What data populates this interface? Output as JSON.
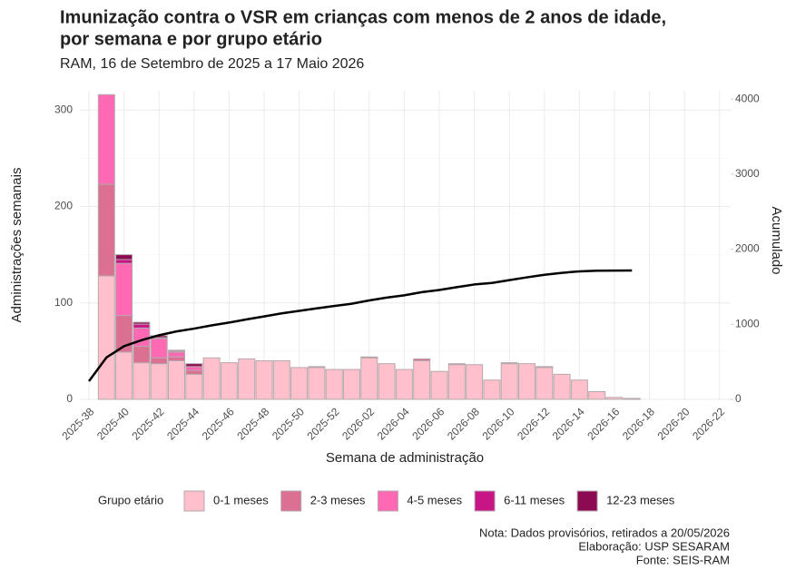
{
  "chart_data": {
    "type": "bar",
    "title": [
      "Imunização contra o VSR em crianças com menos de 2 anos de idade,",
      "por semana e por grupo etário"
    ],
    "subtitle": "RAM, 16 de Setembro de 2025 a 17 Maio 2026",
    "x_label": "Semana de administração",
    "y_label": "Administrações semanais",
    "y2_label": "Acumulado",
    "legend_title": "Grupo etário",
    "notes": [
      "Nota: Dados provisórios, retirados a 20/05/2026",
      "Elaboração: USP SESARAM",
      "Fonte: SEIS-RAM"
    ],
    "stacked": true,
    "grid": true,
    "legend": "bottom",
    "categories": [
      "2025-38",
      null,
      "2025-40",
      null,
      "2025-42",
      null,
      "2025-44",
      null,
      "2025-46",
      null,
      "2025-48",
      null,
      "2025-50",
      null,
      "2025-52",
      null,
      "2026-02",
      null,
      "2026-04",
      null,
      "2026-06",
      null,
      "2026-08",
      null,
      "2026-10",
      null,
      "2026-12",
      null,
      "2026-14",
      null,
      "2026-16",
      null,
      "2026-18",
      null,
      "2026-20",
      null,
      "2026-22"
    ],
    "ylim": [
      0,
      320
    ],
    "yticks": [
      0,
      100,
      200,
      300
    ],
    "y2lim": [
      0,
      4110
    ],
    "y2ticks": [
      0,
      1000,
      2000,
      3000,
      4000
    ],
    "series": [
      {
        "name": "0-1 meses",
        "color": "#ffc0cb",
        "values": [
          null,
          128,
          49,
          38,
          37,
          40,
          26,
          43,
          38,
          42,
          40,
          40,
          33,
          33,
          31,
          31,
          43,
          37,
          31,
          40,
          29,
          36,
          36,
          20,
          37,
          37,
          33,
          26,
          20,
          8,
          2,
          1,
          null,
          null,
          null,
          null,
          null
        ]
      },
      {
        "name": "2-3 meses",
        "color": "#db7093",
        "values": [
          null,
          95,
          38,
          17,
          6,
          4,
          4,
          0,
          0,
          0,
          0,
          0,
          0,
          1,
          0,
          0,
          1,
          0,
          0,
          2,
          0,
          1,
          0,
          0,
          1,
          0,
          1,
          0,
          0,
          0,
          0,
          0,
          null,
          null,
          null,
          null,
          null
        ]
      },
      {
        "name": "4-5 meses",
        "color": "#ff69b4",
        "values": [
          null,
          93,
          54,
          19,
          20,
          5,
          4,
          0,
          0,
          0,
          0,
          0,
          0,
          0,
          0,
          0,
          0,
          0,
          0,
          0,
          0,
          0,
          0,
          0,
          0,
          0,
          0,
          0,
          0,
          0,
          0,
          0,
          null,
          null,
          null,
          null,
          null
        ]
      },
      {
        "name": "6-11 meses",
        "color": "#c71585",
        "values": [
          null,
          0,
          4,
          4,
          1,
          1,
          0,
          0,
          0,
          0,
          0,
          0,
          0,
          0,
          0,
          0,
          0,
          0,
          0,
          0,
          0,
          0,
          0,
          0,
          0,
          0,
          0,
          0,
          0,
          0,
          0,
          0,
          null,
          null,
          null,
          null,
          null
        ]
      },
      {
        "name": "12-23 meses",
        "color": "#8b0a50",
        "values": [
          null,
          0,
          5,
          2,
          2,
          1,
          3,
          0,
          0,
          0,
          0,
          0,
          0,
          0,
          0,
          0,
          0,
          0,
          0,
          0,
          0,
          0,
          0,
          0,
          0,
          0,
          0,
          0,
          0,
          0,
          0,
          0,
          null,
          null,
          null,
          null,
          null
        ]
      },
      {
        "type": "line",
        "axis": "y2",
        "color": "#000000",
        "values": [
          242,
          558,
          708,
          788,
          854,
          905,
          942,
          985,
          1023,
          1065,
          1105,
          1145,
          1178,
          1212,
          1243,
          1274,
          1318,
          1355,
          1386,
          1428,
          1457,
          1494,
          1530,
          1550,
          1588,
          1625,
          1659,
          1685,
          1705,
          1713,
          1715,
          1716,
          null,
          null,
          null,
          null,
          null
        ]
      }
    ]
  }
}
